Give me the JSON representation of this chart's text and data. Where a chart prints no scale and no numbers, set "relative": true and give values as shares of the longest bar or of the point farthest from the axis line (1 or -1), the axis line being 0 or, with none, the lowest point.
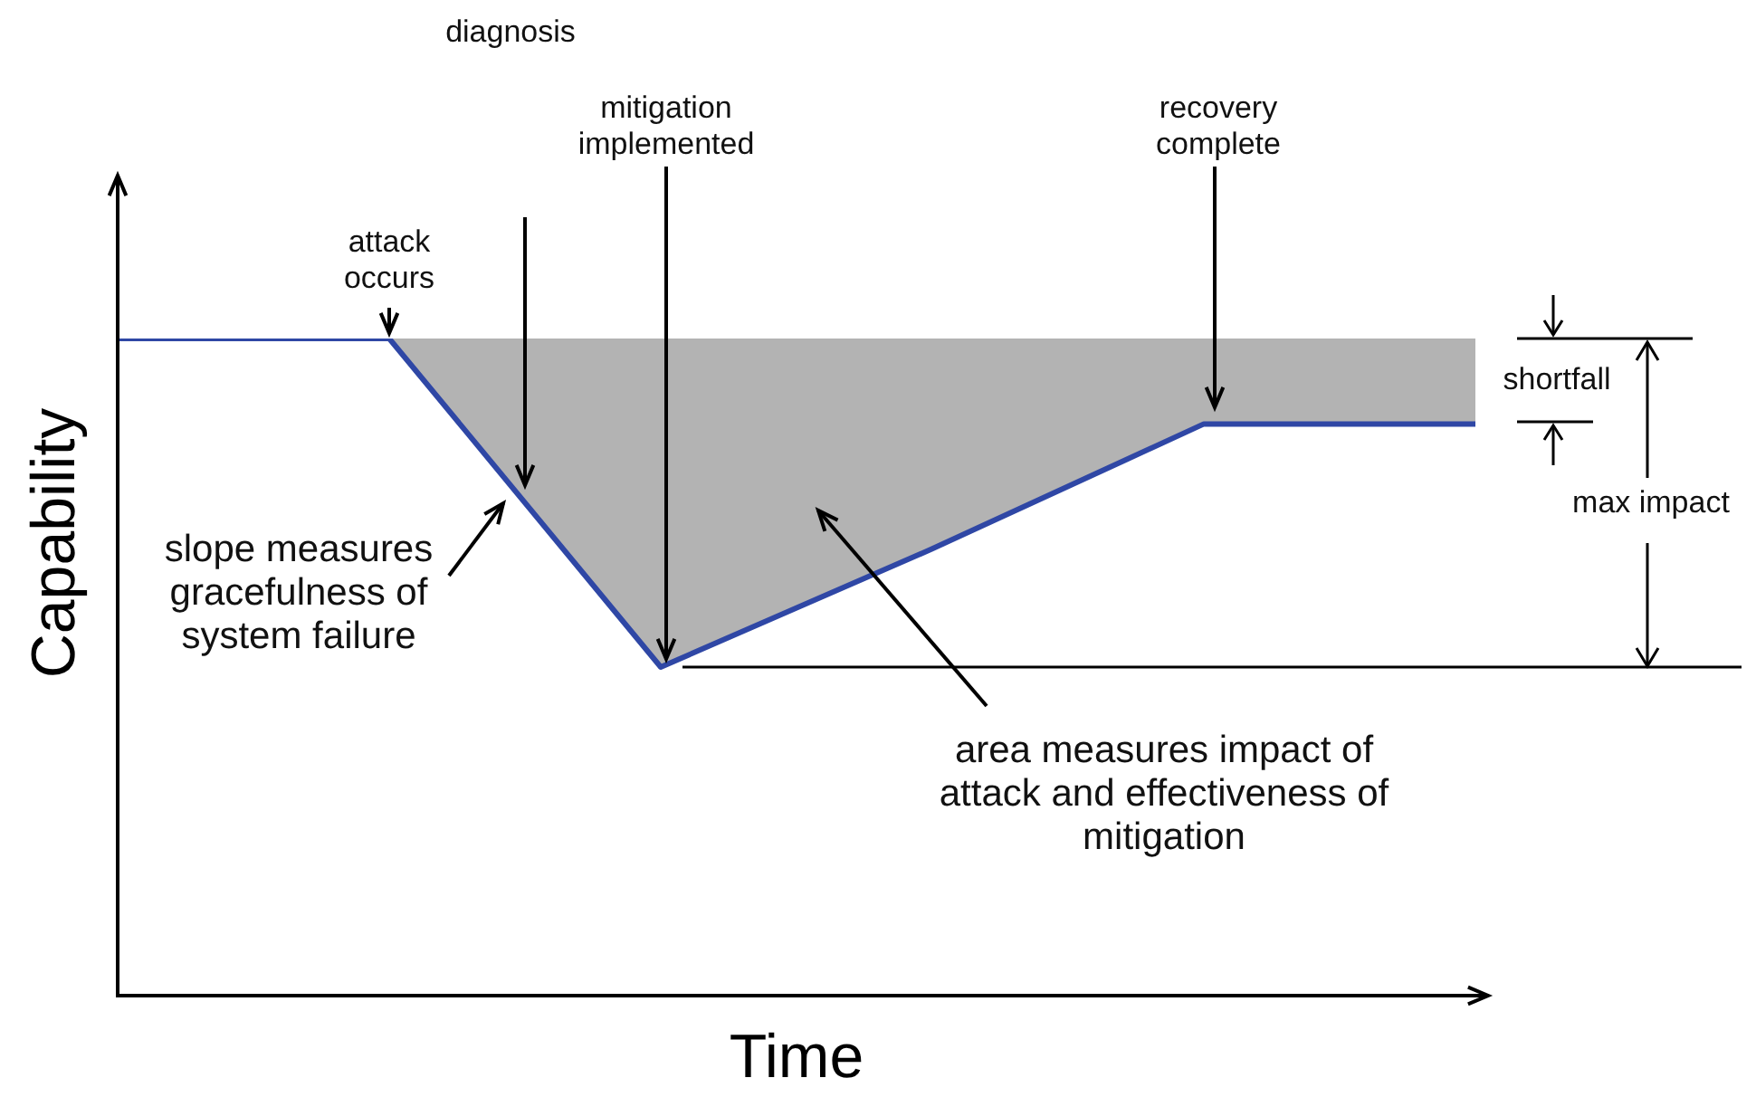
{
  "chart_data": {
    "type": "line",
    "relative": true,
    "xlabel": "Time",
    "ylabel": "Capability",
    "marker": "none",
    "line_style": "solid",
    "grid": false,
    "legend": false,
    "categories": [
      null,
      null,
      null,
      null,
      null,
      null
    ],
    "series": [
      {
        "color": "#2f47a5",
        "values": [
          1,
          1,
          0.5,
          0.68,
          0.87,
          0.87
        ],
        "lower": [
          null,
          1,
          0.5,
          0.68,
          0.87,
          0.87
        ],
        "upper": [
          null,
          1,
          1,
          1,
          1,
          1
        ]
      }
    ],
    "ref_lines": [
      {
        "axis": "y",
        "value": 0.5,
        "color": "#000000"
      }
    ],
    "annotations": [
      "attack occurs",
      "diagnosis",
      "mitigation implemented",
      "recovery complete",
      "slope measures gracefulness of system failure",
      "area measures impact of attack and effectiveness of mitigation",
      "shortfall",
      "max impact"
    ]
  }
}
